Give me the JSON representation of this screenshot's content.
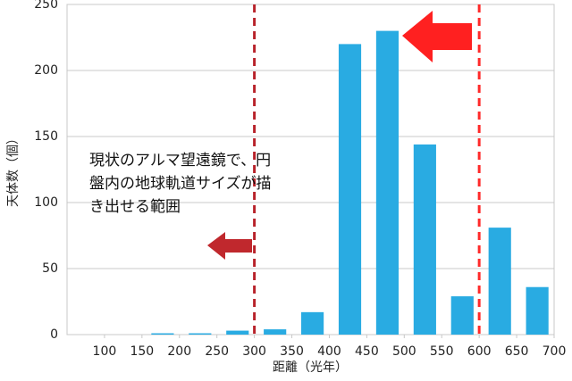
{
  "chart_data": {
    "type": "histogram",
    "xlabel": "距離（光年）",
    "ylabel": "天体数（個）",
    "bins": [
      50,
      100,
      150,
      200,
      250,
      300,
      350,
      400,
      450,
      500,
      550,
      600,
      650,
      700
    ],
    "values": [
      0,
      0,
      1,
      1,
      3,
      4,
      17,
      220,
      230,
      144,
      29,
      81,
      36
    ],
    "color": "#29abe2",
    "xlim": [
      50,
      700
    ],
    "ylim": [
      0,
      250
    ],
    "xticks": [
      100,
      150,
      200,
      250,
      300,
      350,
      400,
      450,
      500,
      550,
      600,
      650,
      700
    ],
    "yticks": [
      0,
      50,
      100,
      150,
      200,
      250
    ],
    "grid": true,
    "vlines": [
      {
        "x": 300,
        "color": "#b8232b"
      },
      {
        "x": 600,
        "color": "#ff2a2a"
      }
    ],
    "annotation": [
      "現状のアルマ望遠鏡で、円",
      "盤内の地球軌道サイズが描",
      "き出せる範囲"
    ]
  }
}
